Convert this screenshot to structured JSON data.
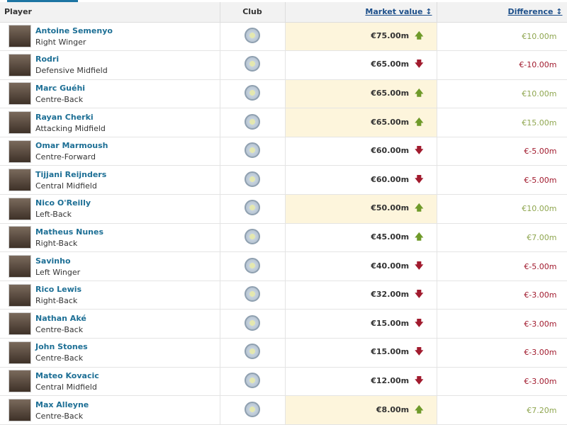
{
  "headers": {
    "player": "Player",
    "club": "Club",
    "market_value": "Market value ↕",
    "difference": "Difference ↕"
  },
  "colors": {
    "up": "#6f9a2a",
    "down": "#a11b2e",
    "highlight": "#fdf5dc",
    "link": "#1d6f95"
  },
  "rows": [
    {
      "name": "Antoine Semenyo",
      "position": "Right Winger",
      "value": "€75.00m",
      "trend": "up",
      "diff": "€10.00m",
      "highlight": true
    },
    {
      "name": "Rodri",
      "position": "Defensive Midfield",
      "value": "€65.00m",
      "trend": "down",
      "diff": "€-10.00m",
      "highlight": false
    },
    {
      "name": "Marc Guéhi",
      "position": "Centre-Back",
      "value": "€65.00m",
      "trend": "up",
      "diff": "€10.00m",
      "highlight": true
    },
    {
      "name": "Rayan Cherki",
      "position": "Attacking Midfield",
      "value": "€65.00m",
      "trend": "up",
      "diff": "€15.00m",
      "highlight": true
    },
    {
      "name": "Omar Marmoush",
      "position": "Centre-Forward",
      "value": "€60.00m",
      "trend": "down",
      "diff": "€-5.00m",
      "highlight": false
    },
    {
      "name": "Tijjani Reijnders",
      "position": "Central Midfield",
      "value": "€60.00m",
      "trend": "down",
      "diff": "€-5.00m",
      "highlight": false
    },
    {
      "name": "Nico O'Reilly",
      "position": "Left-Back",
      "value": "€50.00m",
      "trend": "up",
      "diff": "€10.00m",
      "highlight": true
    },
    {
      "name": "Matheus Nunes",
      "position": "Right-Back",
      "value": "€45.00m",
      "trend": "up",
      "diff": "€7.00m",
      "highlight": false
    },
    {
      "name": "Savinho",
      "position": "Left Winger",
      "value": "€40.00m",
      "trend": "down",
      "diff": "€-5.00m",
      "highlight": false
    },
    {
      "name": "Rico Lewis",
      "position": "Right-Back",
      "value": "€32.00m",
      "trend": "down",
      "diff": "€-3.00m",
      "highlight": false
    },
    {
      "name": "Nathan Aké",
      "position": "Centre-Back",
      "value": "€15.00m",
      "trend": "down",
      "diff": "€-3.00m",
      "highlight": false
    },
    {
      "name": "John Stones",
      "position": "Centre-Back",
      "value": "€15.00m",
      "trend": "down",
      "diff": "€-3.00m",
      "highlight": false
    },
    {
      "name": "Mateo Kovacic",
      "position": "Central Midfield",
      "value": "€12.00m",
      "trend": "down",
      "diff": "€-3.00m",
      "highlight": false
    },
    {
      "name": "Max Alleyne",
      "position": "Centre-Back",
      "value": "€8.00m",
      "trend": "up",
      "diff": "€7.20m",
      "highlight": true
    }
  ]
}
